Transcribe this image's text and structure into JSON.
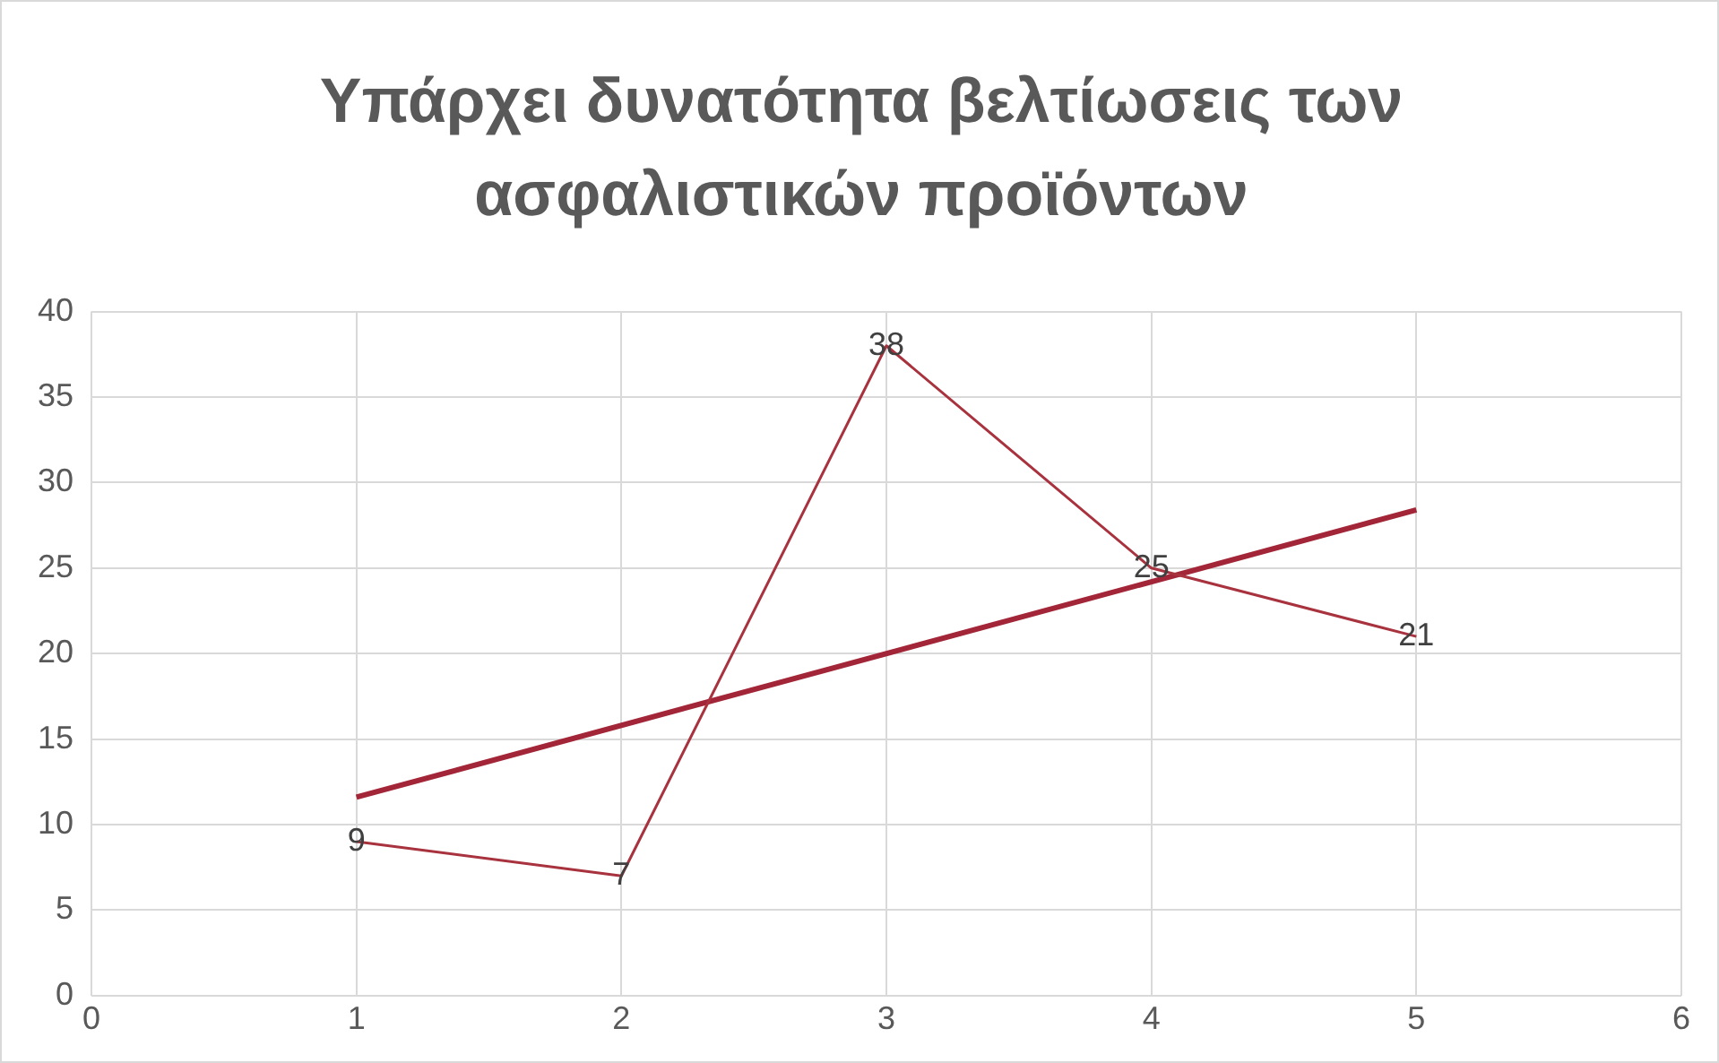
{
  "chart_data": {
    "type": "line",
    "title": "Υπάρχει δυνατότητα βελτίωσεις των ασφαλιστικών προϊόντων",
    "xlim": [
      0,
      6
    ],
    "xticks": [
      0,
      1,
      2,
      3,
      4,
      5,
      6
    ],
    "ylim": [
      0,
      40
    ],
    "yticks": [
      0,
      5,
      10,
      15,
      20,
      25,
      30,
      35,
      40
    ],
    "grid": true,
    "legend": false,
    "marker": "none",
    "series": [
      {
        "color": "#a8323e",
        "x": [
          1,
          2,
          3,
          4,
          5
        ],
        "values": [
          9,
          7,
          38,
          25,
          21
        ],
        "value_labels": [
          "9",
          "7",
          "38",
          "25",
          "21"
        ]
      },
      {
        "color": "#a32638",
        "x": [
          1,
          5
        ],
        "values": [
          11.6,
          28.4
        ]
      }
    ]
  }
}
